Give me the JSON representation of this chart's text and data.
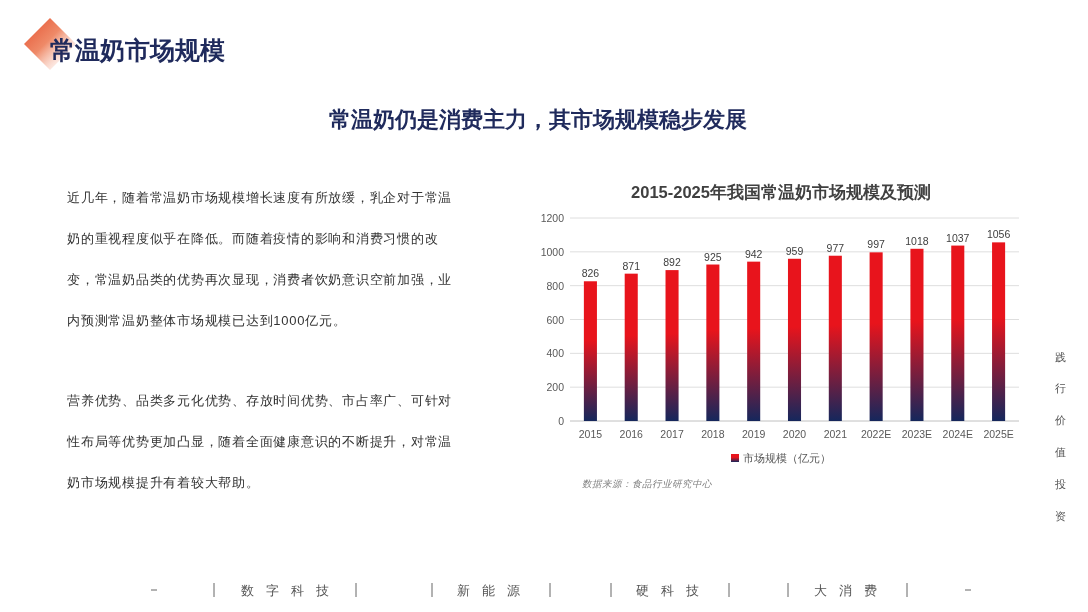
{
  "chart_data": {
    "type": "bar",
    "title": "2015-2025年我国常温奶市场规模及预测",
    "categories": [
      "2015",
      "2016",
      "2017",
      "2018",
      "2019",
      "2020",
      "2021",
      "2022E",
      "2023E",
      "2024E",
      "2025E"
    ],
    "series": [
      {
        "name": "市场规模（亿元）",
        "color": "#e8141c",
        "values": [
          826,
          871,
          892,
          925,
          942,
          959,
          977,
          997,
          1018,
          1037,
          1056
        ]
      }
    ],
    "ylim": [
      0,
      1200
    ],
    "yticks": [
      0,
      200,
      400,
      600,
      800,
      1000,
      1200
    ],
    "grid": "y",
    "legend": "bottom",
    "data_labels": true,
    "annotations": [
      "常温奶市场规模",
      "常温奶仍是消费主力，其市场规模稳步发展",
      "近几年，随着常温奶市场规模增长速度有所放缓，乳企对于常温奶的重视程度似乎在降低。而随着疫情的影响和消费习惯的改变，常温奶品类的优势再次显现，消费者饮奶意识空前加强，业内预测常温奶整体市场规模已达到1000亿元。",
      "营养优势、品类多元化优势、存放时间优势、市占率广、可针对性布局等优势更加凸显，随着全面健康意识的不断提升，对常温奶市场规模提升有着较大帮助。",
      "数据来源：食品行业研究中心",
      "践行价值投资",
      "数字科技",
      "新能源",
      "硬科技",
      "大消费"
    ]
  }
}
